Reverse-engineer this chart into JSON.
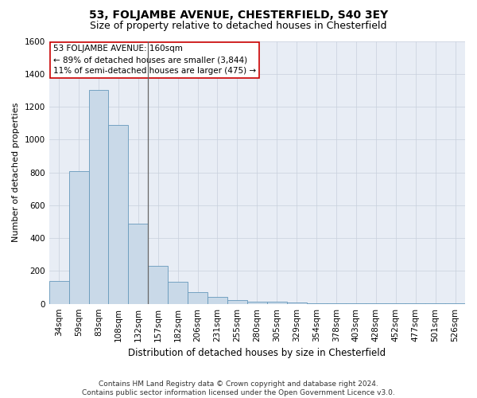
{
  "title": "53, FOLJAMBE AVENUE, CHESTERFIELD, S40 3EY",
  "subtitle": "Size of property relative to detached houses in Chesterfield",
  "xlabel": "Distribution of detached houses by size in Chesterfield",
  "ylabel": "Number of detached properties",
  "footer_line1": "Contains HM Land Registry data © Crown copyright and database right 2024.",
  "footer_line2": "Contains public sector information licensed under the Open Government Licence v3.0.",
  "categories": [
    "34sqm",
    "59sqm",
    "83sqm",
    "108sqm",
    "132sqm",
    "157sqm",
    "182sqm",
    "206sqm",
    "231sqm",
    "255sqm",
    "280sqm",
    "305sqm",
    "329sqm",
    "354sqm",
    "378sqm",
    "403sqm",
    "428sqm",
    "452sqm",
    "477sqm",
    "501sqm",
    "526sqm"
  ],
  "values": [
    140,
    810,
    1300,
    1090,
    490,
    230,
    135,
    70,
    40,
    25,
    15,
    15,
    10,
    5,
    5,
    3,
    2,
    2,
    1,
    1,
    1
  ],
  "bar_color": "#c9d9e8",
  "bar_edge_color": "#6699bb",
  "highlight_line_color": "#666666",
  "annotation_text_line1": "53 FOLJAMBE AVENUE: 160sqm",
  "annotation_text_line2": "← 89% of detached houses are smaller (3,844)",
  "annotation_text_line3": "11% of semi-detached houses are larger (475) →",
  "annotation_box_color": "#ffffff",
  "annotation_box_edge_color": "#cc0000",
  "ylim": [
    0,
    1600
  ],
  "yticks": [
    0,
    200,
    400,
    600,
    800,
    1000,
    1200,
    1400,
    1600
  ],
  "grid_color": "#c8d0dc",
  "bg_color": "#e8edf5",
  "title_fontsize": 10,
  "subtitle_fontsize": 9,
  "xlabel_fontsize": 8.5,
  "ylabel_fontsize": 8,
  "tick_fontsize": 7.5,
  "annotation_fontsize": 7.5,
  "footer_fontsize": 6.5
}
